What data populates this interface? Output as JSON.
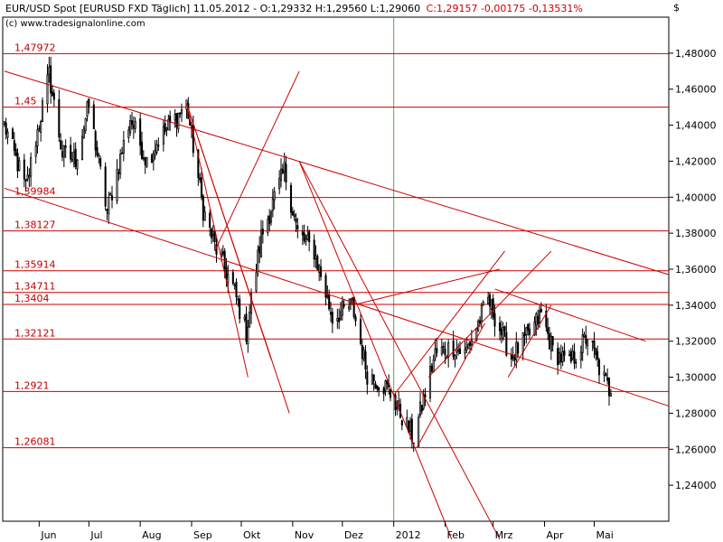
{
  "header": {
    "main": "EUR/USD Spot [EURUSD FXD  Täglich] 11.05.2012 - O:1,29332 H:1,29560 L:1,29060",
    "change": "C:1,29157 -0,00175 -0,13531%",
    "watermark": "(c) www.tradesignalonline.com",
    "currency": "$"
  },
  "colors": {
    "level": "#cc0000",
    "trend": "#cc0000",
    "candle": "#000000",
    "grid": "#4caf50"
  },
  "chart_data": {
    "type": "candlestick",
    "ylim": [
      1.22,
      1.5
    ],
    "y_ticks": [
      "1,48000",
      "1,46000",
      "1,44000",
      "1,42000",
      "1,40000",
      "1,38000",
      "1,36000",
      "1,34000",
      "1,32000",
      "1,30000",
      "1,28000",
      "1,26000",
      "1,24000"
    ],
    "y_tick_values": [
      1.48,
      1.46,
      1.44,
      1.42,
      1.4,
      1.38,
      1.36,
      1.34,
      1.32,
      1.3,
      1.28,
      1.26,
      1.24
    ],
    "x_ticks": [
      "Jun",
      "Jul",
      "Aug",
      "Sep",
      "Okt",
      "Nov",
      "Dez",
      "2012",
      "Feb",
      "Mrz",
      "Apr",
      "Mai"
    ],
    "x_tick_dates": [
      "2011-06-01",
      "2011-07-01",
      "2011-08-01",
      "2011-09-01",
      "2011-10-01",
      "2011-11-01",
      "2011-12-01",
      "2012-01-01",
      "2012-02-01",
      "2012-03-01",
      "2012-04-01",
      "2012-05-01"
    ],
    "date_range": [
      "2011-05-10",
      "2012-06-15"
    ],
    "levels": [
      {
        "label": "1,47972",
        "value": 1.47972
      },
      {
        "label": "1,45",
        "value": 1.45
      },
      {
        "label": "1,39984",
        "value": 1.39984
      },
      {
        "label": "1,38127",
        "value": 1.38127
      },
      {
        "label": "1,35914",
        "value": 1.35914
      },
      {
        "label": "1,34711",
        "value": 1.34711
      },
      {
        "label": "1,3404",
        "value": 1.3404
      },
      {
        "label": "1,32121",
        "value": 1.32121
      },
      {
        "label": "1,2921",
        "value": 1.2921
      },
      {
        "label": "1,26081",
        "value": 1.26081
      }
    ],
    "trendlines": [
      {
        "from": [
          "2011-05-11",
          1.47
        ],
        "to": [
          "2012-06-15",
          1.357
        ]
      },
      {
        "from": [
          "2011-05-11",
          1.405
        ],
        "to": [
          "2012-06-15",
          1.284
        ]
      },
      {
        "from": [
          "2011-08-29",
          1.452
        ],
        "to": [
          "2011-10-05",
          1.3
        ]
      },
      {
        "from": [
          "2011-08-29",
          1.452
        ],
        "to": [
          "2011-10-19",
          1.31
        ]
      },
      {
        "from": [
          "2011-08-29",
          1.452
        ],
        "to": [
          "2011-10-30",
          1.28
        ]
      },
      {
        "from": [
          "2011-09-15",
          1.37
        ],
        "to": [
          "2011-11-05",
          1.47
        ]
      },
      {
        "from": [
          "2011-11-05",
          1.42
        ],
        "to": [
          "2012-02-05",
          1.21
        ]
      },
      {
        "from": [
          "2011-11-05",
          1.42
        ],
        "to": [
          "2012-03-05",
          1.21
        ]
      },
      {
        "from": [
          "2011-12-07",
          1.34
        ],
        "to": [
          "2012-03-05",
          1.36
        ]
      },
      {
        "from": [
          "2012-01-01",
          1.29
        ],
        "to": [
          "2012-03-08",
          1.37
        ]
      },
      {
        "from": [
          "2012-01-22",
          1.3
        ],
        "to": [
          "2012-04-05",
          1.37
        ]
      },
      {
        "from": [
          "2012-03-02",
          1.349
        ],
        "to": [
          "2012-06-01",
          1.32
        ]
      },
      {
        "from": [
          "2012-01-15",
          1.261
        ],
        "to": [
          "2012-02-25",
          1.33
        ]
      },
      {
        "from": [
          "2012-03-10",
          1.3
        ],
        "to": [
          "2012-04-05",
          1.34
        ]
      }
    ],
    "anchors": [
      [
        "2011-05-11",
        1.44
      ],
      [
        "2011-05-24",
        1.405
      ],
      [
        "2011-06-07",
        1.468
      ],
      [
        "2011-06-15",
        1.424
      ],
      [
        "2011-06-23",
        1.421
      ],
      [
        "2011-07-01",
        1.451
      ],
      [
        "2011-07-12",
        1.392
      ],
      [
        "2011-07-26",
        1.444
      ],
      [
        "2011-08-05",
        1.42
      ],
      [
        "2011-08-12",
        1.432
      ],
      [
        "2011-08-29",
        1.452
      ],
      [
        "2011-09-08",
        1.393
      ],
      [
        "2011-09-15",
        1.373
      ],
      [
        "2011-09-26",
        1.35
      ],
      [
        "2011-10-04",
        1.325
      ],
      [
        "2011-10-13",
        1.378
      ],
      [
        "2011-10-27",
        1.415
      ],
      [
        "2011-11-04",
        1.38
      ],
      [
        "2011-11-14",
        1.37
      ],
      [
        "2011-11-25",
        1.333
      ],
      [
        "2011-12-07",
        1.34
      ],
      [
        "2011-12-16",
        1.302
      ],
      [
        "2011-12-28",
        1.294
      ],
      [
        "2012-01-13",
        1.266
      ],
      [
        "2012-01-26",
        1.313
      ],
      [
        "2012-02-06",
        1.317
      ],
      [
        "2012-02-13",
        1.313
      ],
      [
        "2012-02-27",
        1.343
      ],
      [
        "2012-03-12",
        1.311
      ],
      [
        "2012-03-23",
        1.324
      ],
      [
        "2012-03-30",
        1.335
      ],
      [
        "2012-04-06",
        1.315
      ],
      [
        "2012-04-16",
        1.307
      ],
      [
        "2012-04-27",
        1.323
      ],
      [
        "2012-05-04",
        1.305
      ],
      [
        "2012-05-11",
        1.291
      ]
    ]
  }
}
